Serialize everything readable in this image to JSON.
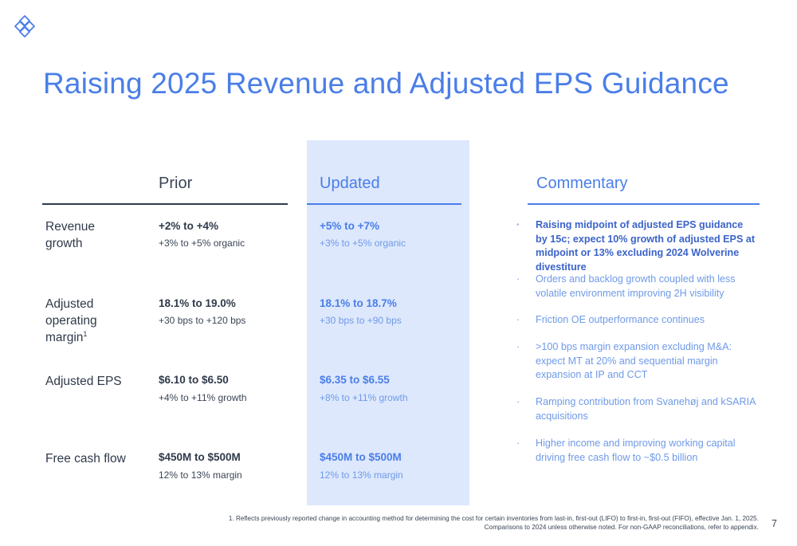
{
  "title": "Raising 2025 Revenue and Adjusted EPS Guidance",
  "colors": {
    "accent": "#4a7ee8",
    "updated_bg": "#dde8fc",
    "text": "#2f3a4a"
  },
  "columns": {
    "prior": "Prior",
    "updated": "Updated",
    "commentary": "Commentary"
  },
  "rows": [
    {
      "label": "Revenue growth",
      "prior_main": "+2% to +4%",
      "prior_sub": "+3% to +5% organic",
      "updated_main": "+5% to +7%",
      "updated_sub": "+3% to +5% organic"
    },
    {
      "label": "Adjusted operating margin",
      "label_sup": "1",
      "prior_main": "18.1% to 19.0%",
      "prior_sub": "+30 bps to +120 bps",
      "updated_main": "18.1% to 18.7%",
      "updated_sub": "+30 bps to +90 bps"
    },
    {
      "label": "Adjusted EPS",
      "prior_main": "$6.10 to $6.50",
      "prior_sub": "+4% to +11% growth",
      "updated_main": "$6.35 to $6.55",
      "updated_sub": "+8% to +11% growth"
    },
    {
      "label": "Free cash flow",
      "prior_main": "$450M to $500M",
      "prior_sub": "12% to 13% margin",
      "updated_main": "$450M to $500M",
      "updated_sub": "12% to 13% margin"
    }
  ],
  "commentary": [
    "Raising midpoint of adjusted EPS guidance by 15c; expect 10% growth of adjusted EPS at midpoint or 13% excluding 2024 Wolverine divestiture",
    "Orders and backlog growth coupled with less volatile environment improving 2H visibility",
    "Friction OE outperformance continues",
    ">100 bps margin expansion excluding M&A: expect MT at 20% and sequential margin expansion at IP and CCT",
    "Ramping contribution from Svanehøj and kSARIA acquisitions",
    "Higher income and improving working capital driving free cash flow to ~$0.5 billion"
  ],
  "bullet_char": "·",
  "footnote": {
    "line1": "1. Reflects previously reported change in accounting method for determining the cost for certain inventories from last-in, first-out (LIFO) to first-in, first-out (FIFO), effective Jan. 1, 2025.",
    "line2": "Comparisons to 2024 unless otherwise noted. For non-GAAP reconciliations, refer to appendix."
  },
  "page_number": "7",
  "logo_icon": "company-logo-icon"
}
